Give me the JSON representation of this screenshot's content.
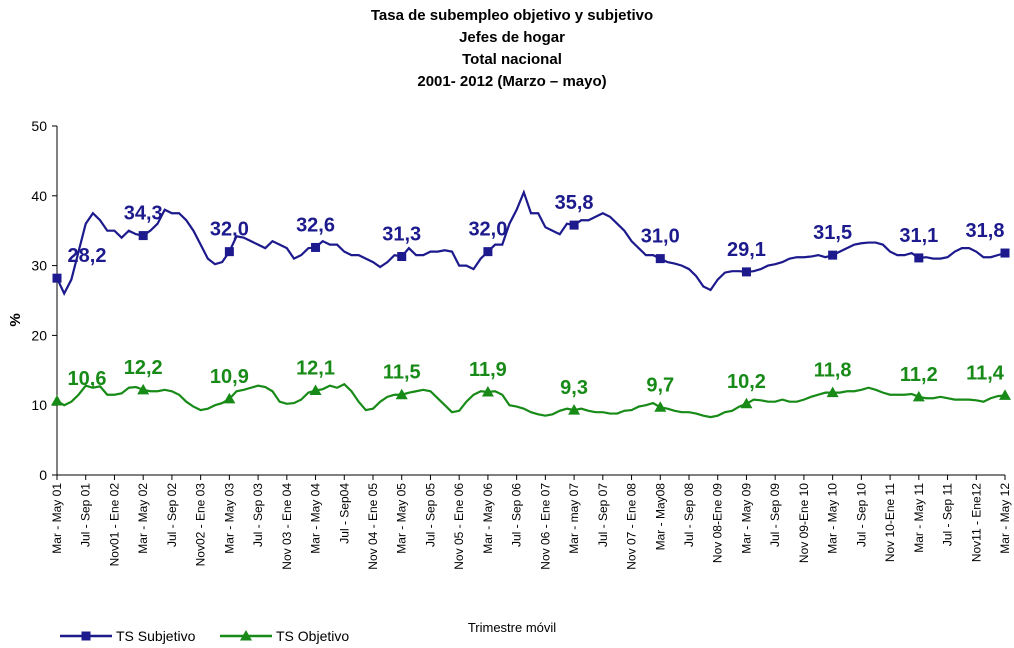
{
  "chart_data": {
    "type": "line",
    "title": [
      "Tasa de subempleo objetivo y subjetivo",
      "Jefes de hogar",
      "Total nacional",
      "2001- 2012 (Marzo – mayo)"
    ],
    "y_label": "%",
    "x_label": "Trimestre móvil",
    "ylim": [
      0,
      50
    ],
    "yticks": [
      0,
      10,
      20,
      30,
      40,
      50
    ],
    "categories": [
      "Mar - May 01",
      null,
      null,
      null,
      "Jul - Sep 01",
      null,
      null,
      null,
      "Nov01 - Ene 02",
      null,
      null,
      null,
      "Mar - May 02",
      null,
      null,
      null,
      "Jul - Sep 02",
      null,
      null,
      null,
      "Nov02 - Ene 03",
      null,
      null,
      null,
      "Mar - May 03",
      null,
      null,
      null,
      "Jul - Sep 03",
      null,
      null,
      null,
      "Nov 03 - Ene 04",
      null,
      null,
      null,
      "Mar - May 04",
      null,
      null,
      null,
      "Jul - Sep04",
      null,
      null,
      null,
      "Nov 04 - Ene 05",
      null,
      null,
      null,
      "Mar - May 05",
      null,
      null,
      null,
      "Jul - Sep 05",
      null,
      null,
      null,
      "Nov 05 - Ene 06",
      null,
      null,
      null,
      "Mar - May 06",
      null,
      null,
      null,
      "Jul - Sep 06",
      null,
      null,
      null,
      "Nov 06 - Ene 07",
      null,
      null,
      null,
      "Mar - may 07",
      null,
      null,
      null,
      "Jul - Sep 07",
      null,
      null,
      null,
      "Nov 07 - Ene 08",
      null,
      null,
      null,
      "Mar - May08",
      null,
      null,
      null,
      "Jul - Sep 08",
      null,
      null,
      null,
      "Nov 08-Ene 09",
      null,
      null,
      null,
      "Mar - May 09",
      null,
      null,
      null,
      "Jul - Sep 09",
      null,
      null,
      null,
      "Nov 09-Ene 10",
      null,
      null,
      null,
      "Mar - May 10",
      null,
      null,
      null,
      "Jul - Sep 10",
      null,
      null,
      null,
      "Nov 10-Ene 11",
      null,
      null,
      null,
      "Mar - May 11",
      null,
      null,
      null,
      "Jul - Sep 11",
      null,
      null,
      null,
      "Nov11 - Ene12",
      null,
      null,
      null,
      "Mar - May 12"
    ],
    "series": [
      {
        "name": "TS Subjetivo",
        "color": "#1c1a8c",
        "marker": "square",
        "values": [
          28.2,
          26,
          28,
          32,
          36,
          37.5,
          36.5,
          35,
          35,
          34,
          35,
          34.5,
          34.3,
          35,
          36,
          38,
          37.5,
          37.5,
          36.5,
          35,
          33,
          31,
          30.2,
          30.5,
          32.0,
          34.2,
          34,
          33.5,
          33,
          32.5,
          33.5,
          33,
          32.5,
          31,
          31.5,
          32.5,
          32.6,
          33.5,
          33,
          33,
          32,
          31.5,
          31.5,
          31,
          30.5,
          29.8,
          30.5,
          31.5,
          31.3,
          32.5,
          31.5,
          31.5,
          32,
          32,
          32.2,
          32,
          30,
          30,
          29.5,
          31,
          32.0,
          33,
          33,
          36,
          38,
          40.5,
          37.5,
          37.5,
          35.5,
          35,
          34.5,
          36,
          35.8,
          36.5,
          36.5,
          37,
          37.5,
          37,
          36,
          35,
          33.5,
          32.5,
          31.5,
          31.5,
          31.0,
          30.5,
          30.3,
          30,
          29.5,
          28.5,
          27,
          26.5,
          28,
          29,
          29.2,
          29.2,
          29.1,
          29.2,
          29.5,
          30,
          30.2,
          30.5,
          31,
          31.2,
          31.2,
          31.3,
          31.5,
          31.2,
          31.5,
          32,
          32.5,
          33,
          33.2,
          33.3,
          33.3,
          33,
          32,
          31.5,
          31.5,
          31.8,
          31.1,
          31.2,
          31,
          31,
          31.2,
          32,
          32.5,
          32.5,
          32,
          31.2,
          31.2,
          31.5,
          31.8
        ],
        "value_labels": [
          "28,2",
          null,
          null,
          null,
          null,
          null,
          null,
          null,
          null,
          null,
          null,
          null,
          "34,3",
          null,
          null,
          null,
          null,
          null,
          null,
          null,
          null,
          null,
          null,
          null,
          "32,0",
          null,
          null,
          null,
          null,
          null,
          null,
          null,
          null,
          null,
          null,
          null,
          "32,6",
          null,
          null,
          null,
          null,
          null,
          null,
          null,
          null,
          null,
          null,
          null,
          "31,3",
          null,
          null,
          null,
          null,
          null,
          null,
          null,
          null,
          null,
          null,
          null,
          "32,0",
          null,
          null,
          null,
          null,
          null,
          null,
          null,
          null,
          null,
          null,
          null,
          "35,8",
          null,
          null,
          null,
          null,
          null,
          null,
          null,
          null,
          null,
          null,
          null,
          "31,0",
          null,
          null,
          null,
          null,
          null,
          null,
          null,
          null,
          null,
          null,
          null,
          "29,1",
          null,
          null,
          null,
          null,
          null,
          null,
          null,
          null,
          null,
          null,
          null,
          "31,5",
          null,
          null,
          null,
          null,
          null,
          null,
          null,
          null,
          null,
          null,
          null,
          "31,1",
          null,
          null,
          null,
          null,
          null,
          null,
          null,
          null,
          null,
          null,
          null,
          "31,8"
        ]
      },
      {
        "name": "TS Objetivo",
        "color": "#178a17",
        "marker": "triangle",
        "values": [
          10.6,
          10,
          10.5,
          11.5,
          12.8,
          12.5,
          12.7,
          11.5,
          11.5,
          11.7,
          12.5,
          12.6,
          12.2,
          12,
          12,
          12.2,
          12,
          11.5,
          10.5,
          9.8,
          9.3,
          9.5,
          10,
          10.3,
          10.9,
          12,
          12.2,
          12.5,
          12.8,
          12.6,
          12,
          10.5,
          10.2,
          10.3,
          10.8,
          11.8,
          12.1,
          12.3,
          12.8,
          12.5,
          13,
          12,
          10.5,
          9.3,
          9.5,
          10.5,
          11.2,
          11.5,
          11.5,
          11.8,
          12,
          12.2,
          12,
          11,
          10,
          9,
          9.2,
          10.5,
          11.5,
          12,
          11.9,
          12,
          11.5,
          10,
          9.8,
          9.5,
          9,
          8.7,
          8.5,
          8.7,
          9.2,
          9.5,
          9.3,
          9.5,
          9.2,
          9,
          9,
          8.8,
          8.8,
          9.2,
          9.3,
          9.8,
          10,
          10.3,
          9.7,
          9.5,
          9.2,
          9,
          9,
          8.8,
          8.5,
          8.3,
          8.5,
          9,
          9.2,
          9.8,
          10.2,
          10.8,
          10.7,
          10.5,
          10.5,
          10.8,
          10.5,
          10.5,
          10.8,
          11.2,
          11.5,
          11.8,
          11.8,
          11.8,
          12,
          12,
          12.2,
          12.5,
          12.2,
          11.8,
          11.5,
          11.5,
          11.5,
          11.6,
          11.2,
          11,
          11,
          11.2,
          11,
          10.8,
          10.8,
          10.8,
          10.7,
          10.5,
          11,
          11.3,
          11.4
        ],
        "value_labels": [
          "10,6",
          null,
          null,
          null,
          null,
          null,
          null,
          null,
          null,
          null,
          null,
          null,
          "12,2",
          null,
          null,
          null,
          null,
          null,
          null,
          null,
          null,
          null,
          null,
          null,
          "10,9",
          null,
          null,
          null,
          null,
          null,
          null,
          null,
          null,
          null,
          null,
          null,
          "12,1",
          null,
          null,
          null,
          null,
          null,
          null,
          null,
          null,
          null,
          null,
          null,
          "11,5",
          null,
          null,
          null,
          null,
          null,
          null,
          null,
          null,
          null,
          null,
          null,
          "11,9",
          null,
          null,
          null,
          null,
          null,
          null,
          null,
          null,
          null,
          null,
          null,
          "9,3",
          null,
          null,
          null,
          null,
          null,
          null,
          null,
          null,
          null,
          null,
          null,
          "9,7",
          null,
          null,
          null,
          null,
          null,
          null,
          null,
          null,
          null,
          null,
          null,
          "10,2",
          null,
          null,
          null,
          null,
          null,
          null,
          null,
          null,
          null,
          null,
          null,
          "11,8",
          null,
          null,
          null,
          null,
          null,
          null,
          null,
          null,
          null,
          null,
          null,
          "11,2",
          null,
          null,
          null,
          null,
          null,
          null,
          null,
          null,
          null,
          null,
          null,
          "11,4"
        ]
      }
    ],
    "legend": "bottom-left"
  }
}
